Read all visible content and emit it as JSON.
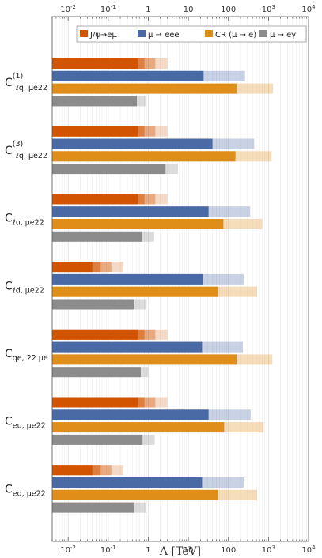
{
  "chart_data": {
    "type": "bar",
    "orientation": "horizontal",
    "x_scale": "log",
    "xlim": [
      0.004,
      10000
    ],
    "xlabel": "Λ [TeV]",
    "x_ticks": [
      {
        "value": 0.01,
        "base": "10",
        "exp": "-2"
      },
      {
        "value": 0.1,
        "base": "10",
        "exp": "-1"
      },
      {
        "value": 1,
        "base": "1",
        "exp": ""
      },
      {
        "value": 10,
        "base": "10",
        "exp": ""
      },
      {
        "value": 100,
        "base": "100",
        "exp": ""
      },
      {
        "value": 1000,
        "base": "10",
        "exp": "3"
      },
      {
        "value": 10000,
        "base": "10",
        "exp": "4"
      }
    ],
    "legend_position": "top-right",
    "series": [
      {
        "name": "J/ψ→eμ",
        "color": "#d35400"
      },
      {
        "name": "μ → eee",
        "color": "#4a6aa5"
      },
      {
        "name": "CR (μ → e)",
        "color": "#e08e1a"
      },
      {
        "name": "μ → eγ",
        "color": "#8c8c8c"
      }
    ],
    "rows": [
      {
        "main": "C",
        "sup": "(1)",
        "sub": "ℓq, μe22",
        "bars": [
          [
            0.55,
            0.8,
            1.5,
            3.0
          ],
          [
            24,
            260
          ],
          [
            160,
            1300
          ],
          [
            0.52,
            0.85
          ]
        ]
      },
      {
        "main": "C",
        "sup": "(3)",
        "sub": "ℓq, μe22",
        "bars": [
          [
            0.55,
            0.8,
            1.5,
            3.0
          ],
          [
            40,
            440
          ],
          [
            150,
            1200
          ],
          [
            2.7,
            5.5
          ]
        ]
      },
      {
        "main": "C",
        "sup": "",
        "sub": "ℓu, μe22",
        "bars": [
          [
            0.55,
            0.8,
            1.5,
            3.0
          ],
          [
            32,
            350
          ],
          [
            75,
            700
          ],
          [
            0.7,
            1.4
          ]
        ]
      },
      {
        "main": "C",
        "sup": "",
        "sub": "ℓd, μe22",
        "bars": [
          [
            0.04,
            0.065,
            0.12,
            0.24
          ],
          [
            23,
            240
          ],
          [
            55,
            520
          ],
          [
            0.45,
            0.9
          ]
        ]
      },
      {
        "main": "C",
        "sup": "",
        "sub": "qe, 22 μe",
        "bars": [
          [
            0.55,
            0.8,
            1.5,
            3.0
          ],
          [
            22,
            230
          ],
          [
            160,
            1250
          ],
          [
            0.65,
            1.0
          ]
        ]
      },
      {
        "main": "C",
        "sup": "",
        "sub": "eu, μe22",
        "bars": [
          [
            0.55,
            0.8,
            1.5,
            3.0
          ],
          [
            32,
            360
          ],
          [
            78,
            760
          ],
          [
            0.72,
            1.45
          ]
        ]
      },
      {
        "main": "C",
        "sup": "",
        "sub": "ed, μe22",
        "bars": [
          [
            0.04,
            0.065,
            0.12,
            0.24
          ],
          [
            22,
            240
          ],
          [
            55,
            520
          ],
          [
            0.45,
            0.9
          ]
        ]
      }
    ]
  }
}
